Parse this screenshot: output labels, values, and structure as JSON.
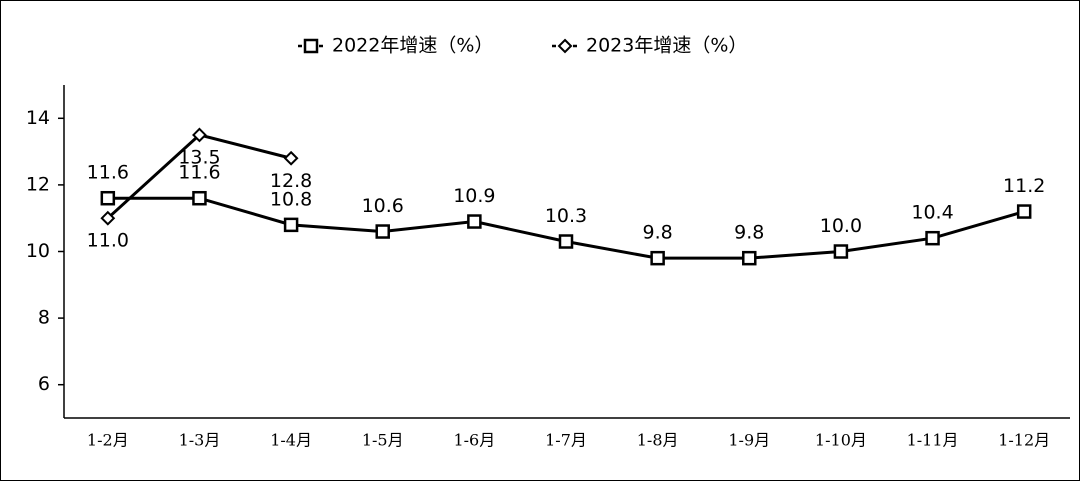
{
  "chart_data": {
    "type": "line",
    "categories": [
      "1-2月",
      "1-3月",
      "1-4月",
      "1-5月",
      "1-6月",
      "1-7月",
      "1-8月",
      "1-9月",
      "1-10月",
      "1-11月",
      "1-12月"
    ],
    "series": [
      {
        "name": "2022年增速（%）",
        "color": "#000000",
        "marker": "square",
        "values": [
          11.6,
          11.6,
          10.8,
          10.6,
          10.9,
          10.3,
          9.8,
          9.8,
          10.0,
          10.4,
          11.2
        ],
        "value_labels": [
          "11.6",
          "11.6",
          "10.8",
          "10.6",
          "10.9",
          "10.3",
          "9.8",
          "9.8",
          "10.0",
          "10.4",
          "11.2"
        ]
      },
      {
        "name": "2023年增速（%）",
        "color": "#000000",
        "marker": "diamond",
        "values": [
          11.0,
          13.5,
          12.8,
          null,
          null,
          null,
          null,
          null,
          null,
          null,
          null
        ],
        "value_labels": [
          "11.0",
          "13.5",
          "12.8",
          null,
          null,
          null,
          null,
          null,
          null,
          null,
          null
        ]
      }
    ],
    "ylim": [
      5,
      15
    ],
    "yticks": [
      6,
      8,
      10,
      12,
      14
    ],
    "legend": "top"
  }
}
